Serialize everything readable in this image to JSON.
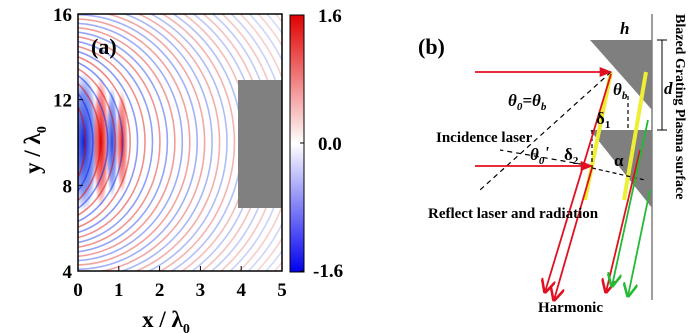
{
  "panel_a": {
    "label": "(a)",
    "ylabel_main": "y / λ",
    "ylabel_sub": "0",
    "xlabel_main": "x / λ",
    "xlabel_sub": "0",
    "x_ticks": [
      "0",
      "1",
      "2",
      "3",
      "4",
      "5"
    ],
    "y_ticks": [
      "4",
      "8",
      "12",
      "16"
    ],
    "colorbar_ticks": [
      "1.6",
      "0.0",
      "-1.6"
    ],
    "colors": {
      "positive": "#e00000",
      "negative": "#0022ee",
      "target": "#808080"
    }
  },
  "panel_b": {
    "label": "(b)",
    "h_label": "h",
    "d_label": "d",
    "theta0_eq": "θ",
    "theta0_sub": "0",
    "theta_eq_rhs": "=θ",
    "theta_b_sub": "b",
    "theta_b": "θ",
    "theta_b_sub2": "b",
    "delta1": "δ",
    "delta1_sub": "1",
    "theta0p": "θ",
    "theta0p_sub": "0",
    "theta0p_prime": "'",
    "delta2": "δ",
    "delta2_sub": "2",
    "alpha": "α",
    "incidence_label": "Incidence laser",
    "reflect_label": "Reflect laser and radiation",
    "harmonic_label": "Harmonic",
    "side_title": "Blazed Grating Plasma surface",
    "colors": {
      "laser": "#e01020",
      "harmonic": "#22bb33",
      "facet": "#eeee33",
      "grating": "#7f7f7f"
    }
  }
}
